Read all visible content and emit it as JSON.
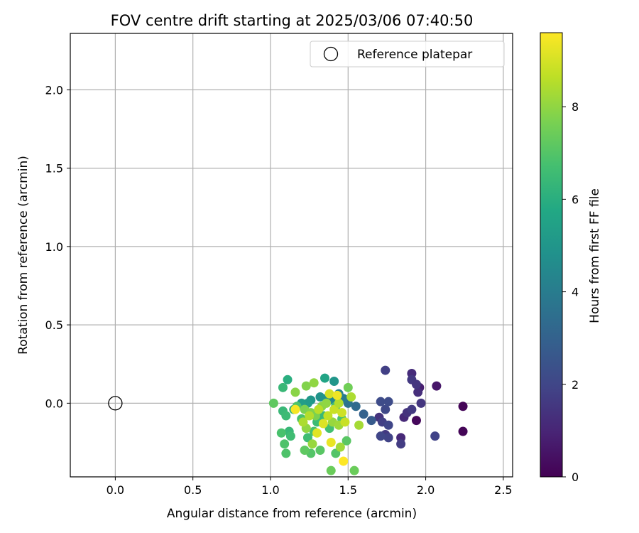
{
  "chart_data": {
    "type": "scatter",
    "title": "FOV centre drift starting at 2025/03/06 07:40:50",
    "xlabel": "Angular distance from reference (arcmin)",
    "ylabel": "Rotation from reference (arcmin)",
    "xlim": [
      -0.29,
      2.56
    ],
    "ylim": [
      -0.47,
      2.36
    ],
    "xticks": [
      "0.0",
      "0.5",
      "1.0",
      "1.5",
      "2.0",
      "2.5"
    ],
    "xtick_values": [
      0.0,
      0.5,
      1.0,
      1.5,
      2.0,
      2.5
    ],
    "yticks": [
      "0.0",
      "0.5",
      "1.0",
      "1.5",
      "2.0"
    ],
    "ytick_values": [
      0.0,
      0.5,
      1.0,
      1.5,
      2.0
    ],
    "grid": true,
    "legend": {
      "position": "top-right",
      "entries": [
        "Reference platepar"
      ]
    },
    "reference": {
      "x": 0.0,
      "y": 0.0,
      "label": "Reference platepar"
    },
    "colorbar": {
      "label": "Hours from first FF file",
      "colormap": "viridis",
      "range": [
        0,
        9.6
      ],
      "ticks": [
        "0",
        "2",
        "4",
        "6",
        "8"
      ],
      "tick_values": [
        0,
        2,
        4,
        6,
        8
      ]
    },
    "points": [
      {
        "x": 2.24,
        "y": -0.02,
        "t": 0.1
      },
      {
        "x": 2.24,
        "y": -0.18,
        "t": 0.1
      },
      {
        "x": 1.94,
        "y": -0.11,
        "t": 0.2
      },
      {
        "x": 2.07,
        "y": 0.11,
        "t": 0.6
      },
      {
        "x": 1.96,
        "y": 0.1,
        "t": 0.8
      },
      {
        "x": 1.91,
        "y": 0.19,
        "t": 1.2
      },
      {
        "x": 1.95,
        "y": 0.07,
        "t": 1.3
      },
      {
        "x": 1.84,
        "y": -0.22,
        "t": 1.1
      },
      {
        "x": 1.86,
        "y": -0.09,
        "t": 1.1
      },
      {
        "x": 1.88,
        "y": -0.06,
        "t": 1.4
      },
      {
        "x": 1.91,
        "y": -0.04,
        "t": 1.6
      },
      {
        "x": 1.97,
        "y": 0.0,
        "t": 1.5
      },
      {
        "x": 1.91,
        "y": 0.15,
        "t": 1.6
      },
      {
        "x": 1.94,
        "y": 0.12,
        "t": 1.5
      },
      {
        "x": 1.84,
        "y": -0.26,
        "t": 1.7
      },
      {
        "x": 2.06,
        "y": -0.21,
        "t": 1.9
      },
      {
        "x": 1.74,
        "y": 0.21,
        "t": 1.8
      },
      {
        "x": 1.7,
        "y": -0.09,
        "t": 1.4
      },
      {
        "x": 1.72,
        "y": -0.12,
        "t": 1.8
      },
      {
        "x": 1.74,
        "y": -0.2,
        "t": 1.6
      },
      {
        "x": 1.76,
        "y": -0.22,
        "t": 1.9
      },
      {
        "x": 1.71,
        "y": -0.21,
        "t": 2.0
      },
      {
        "x": 1.76,
        "y": -0.14,
        "t": 2.0
      },
      {
        "x": 1.74,
        "y": -0.04,
        "t": 2.1
      },
      {
        "x": 1.71,
        "y": 0.01,
        "t": 2.2
      },
      {
        "x": 1.76,
        "y": 0.01,
        "t": 2.2
      },
      {
        "x": 1.65,
        "y": -0.11,
        "t": 2.7
      },
      {
        "x": 1.6,
        "y": -0.07,
        "t": 3.0
      },
      {
        "x": 1.55,
        "y": -0.02,
        "t": 3.3
      },
      {
        "x": 1.5,
        "y": 0.0,
        "t": 3.6
      },
      {
        "x": 1.47,
        "y": 0.03,
        "t": 3.9
      },
      {
        "x": 1.44,
        "y": 0.06,
        "t": 4.2
      },
      {
        "x": 1.4,
        "y": 0.02,
        "t": 4.5
      },
      {
        "x": 1.36,
        "y": 0.03,
        "t": 4.7
      },
      {
        "x": 1.32,
        "y": 0.04,
        "t": 4.9
      },
      {
        "x": 1.26,
        "y": 0.02,
        "t": 5.0
      },
      {
        "x": 1.24,
        "y": 0.0,
        "t": 5.2
      },
      {
        "x": 1.2,
        "y": 0.0,
        "t": 5.3
      },
      {
        "x": 1.41,
        "y": 0.14,
        "t": 5.0
      },
      {
        "x": 1.35,
        "y": 0.16,
        "t": 5.6
      },
      {
        "x": 1.11,
        "y": 0.15,
        "t": 6.0
      },
      {
        "x": 1.08,
        "y": 0.1,
        "t": 6.4
      },
      {
        "x": 1.15,
        "y": -0.04,
        "t": 6.2
      },
      {
        "x": 1.08,
        "y": -0.05,
        "t": 6.4
      },
      {
        "x": 1.1,
        "y": -0.08,
        "t": 6.5
      },
      {
        "x": 1.12,
        "y": -0.18,
        "t": 6.4
      },
      {
        "x": 1.13,
        "y": -0.21,
        "t": 6.6
      },
      {
        "x": 1.07,
        "y": -0.19,
        "t": 6.8
      },
      {
        "x": 1.09,
        "y": -0.26,
        "t": 6.9
      },
      {
        "x": 1.1,
        "y": -0.32,
        "t": 6.9
      },
      {
        "x": 1.02,
        "y": 0.0,
        "t": 7.2
      },
      {
        "x": 1.17,
        "y": -0.02,
        "t": 6.9
      },
      {
        "x": 1.2,
        "y": -0.1,
        "t": 6.8
      },
      {
        "x": 1.24,
        "y": -0.22,
        "t": 6.6
      },
      {
        "x": 1.28,
        "y": -0.18,
        "t": 6.8
      },
      {
        "x": 1.3,
        "y": -0.12,
        "t": 6.5
      },
      {
        "x": 1.34,
        "y": -0.08,
        "t": 6.4
      },
      {
        "x": 1.38,
        "y": -0.16,
        "t": 6.7
      },
      {
        "x": 1.42,
        "y": -0.02,
        "t": 6.6
      },
      {
        "x": 1.46,
        "y": -0.1,
        "t": 6.8
      },
      {
        "x": 1.49,
        "y": -0.24,
        "t": 7.1
      },
      {
        "x": 1.26,
        "y": -0.32,
        "t": 7.0
      },
      {
        "x": 1.22,
        "y": -0.3,
        "t": 7.2
      },
      {
        "x": 1.32,
        "y": -0.3,
        "t": 7.1
      },
      {
        "x": 1.42,
        "y": -0.32,
        "t": 7.0
      },
      {
        "x": 1.39,
        "y": -0.43,
        "t": 7.4
      },
      {
        "x": 1.54,
        "y": -0.43,
        "t": 7.4
      },
      {
        "x": 1.5,
        "y": 0.1,
        "t": 7.5
      },
      {
        "x": 1.23,
        "y": 0.11,
        "t": 7.8
      },
      {
        "x": 1.16,
        "y": 0.07,
        "t": 7.9
      },
      {
        "x": 1.28,
        "y": 0.13,
        "t": 8.0
      },
      {
        "x": 1.22,
        "y": -0.04,
        "t": 7.7
      },
      {
        "x": 1.26,
        "y": -0.06,
        "t": 7.8
      },
      {
        "x": 1.29,
        "y": -0.08,
        "t": 7.7
      },
      {
        "x": 1.33,
        "y": -0.02,
        "t": 7.9
      },
      {
        "x": 1.36,
        "y": 0.0,
        "t": 8.0
      },
      {
        "x": 1.4,
        "y": -0.12,
        "t": 8.1
      },
      {
        "x": 1.44,
        "y": -0.14,
        "t": 8.2
      },
      {
        "x": 1.45,
        "y": -0.28,
        "t": 8.2
      },
      {
        "x": 1.27,
        "y": -0.26,
        "t": 8.1
      },
      {
        "x": 1.23,
        "y": -0.16,
        "t": 8.0
      },
      {
        "x": 1.21,
        "y": -0.12,
        "t": 8.4
      },
      {
        "x": 1.25,
        "y": -0.08,
        "t": 8.5
      },
      {
        "x": 1.31,
        "y": -0.04,
        "t": 8.6
      },
      {
        "x": 1.37,
        "y": -0.08,
        "t": 8.7
      },
      {
        "x": 1.41,
        "y": -0.04,
        "t": 8.8
      },
      {
        "x": 1.46,
        "y": -0.06,
        "t": 8.9
      },
      {
        "x": 1.52,
        "y": 0.04,
        "t": 8.4
      },
      {
        "x": 1.57,
        "y": -0.14,
        "t": 8.3
      },
      {
        "x": 1.44,
        "y": 0.0,
        "t": 8.5
      },
      {
        "x": 1.48,
        "y": -0.12,
        "t": 8.8
      },
      {
        "x": 1.38,
        "y": 0.06,
        "t": 9.0
      },
      {
        "x": 1.34,
        "y": -0.13,
        "t": 9.1
      },
      {
        "x": 1.3,
        "y": -0.19,
        "t": 9.2
      },
      {
        "x": 1.39,
        "y": -0.25,
        "t": 9.3
      },
      {
        "x": 1.43,
        "y": 0.05,
        "t": 9.4
      },
      {
        "x": 1.16,
        "y": -0.04,
        "t": 9.5
      },
      {
        "x": 1.47,
        "y": -0.37,
        "t": 9.6
      }
    ]
  }
}
